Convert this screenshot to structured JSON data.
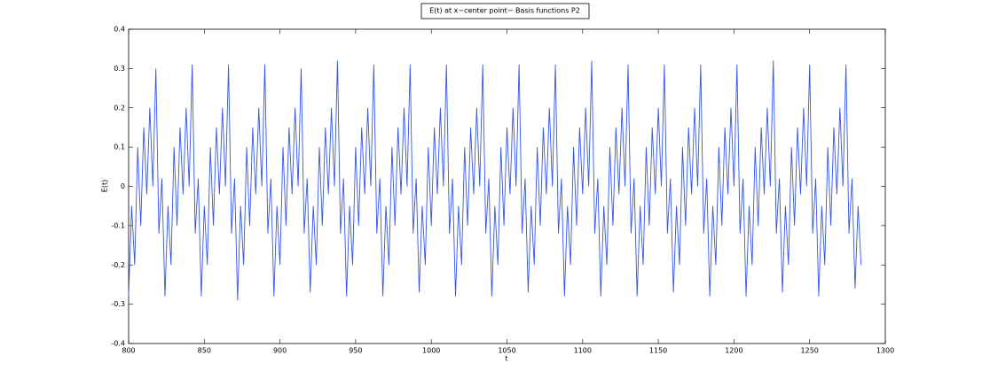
{
  "chart_data": {
    "type": "line",
    "title": "E(t) at x−center point− Basis functions P2",
    "x_label": "t",
    "y_label": "E(t)",
    "xlim": [
      800,
      1300
    ],
    "xticks": [
      800,
      850,
      900,
      950,
      1000,
      1050,
      1100,
      1150,
      1200,
      1250,
      1300
    ],
    "ylim": [
      -0.4,
      0.4
    ],
    "yticks": [
      -0.4,
      -0.3,
      -0.2,
      -0.1,
      0,
      0.1,
      0.2,
      0.3,
      0.4
    ],
    "grid": false,
    "series": [
      {
        "name": "E(t)",
        "color": "#3355ee",
        "x": [
          800,
          802,
          804,
          806,
          808,
          810,
          812,
          814,
          816,
          818,
          820,
          822,
          824,
          826,
          828,
          830,
          832,
          834,
          836,
          838,
          840,
          842,
          844,
          846,
          848,
          850,
          852,
          854,
          856,
          858,
          860,
          862,
          864,
          866,
          868,
          870,
          872,
          874,
          876,
          878,
          880,
          882,
          884,
          886,
          888,
          890,
          892,
          894,
          896,
          898,
          900,
          902,
          904,
          906,
          908,
          910,
          912,
          914,
          916,
          918,
          920,
          922,
          924,
          926,
          928,
          930,
          932,
          934,
          936,
          938,
          940,
          942,
          944,
          946,
          948,
          950,
          952,
          954,
          956,
          958,
          960,
          962,
          964,
          966,
          968,
          970,
          972,
          974,
          976,
          978,
          980,
          982,
          984,
          986,
          988,
          990,
          992,
          994,
          996,
          998,
          1000,
          1002,
          1004,
          1006,
          1008,
          1010,
          1012,
          1014,
          1016,
          1018,
          1020,
          1022,
          1024,
          1026,
          1028,
          1030,
          1032,
          1034,
          1036,
          1038,
          1040,
          1042,
          1044,
          1046,
          1048,
          1050,
          1052,
          1054,
          1056,
          1058,
          1060,
          1062,
          1064,
          1066,
          1068,
          1070,
          1072,
          1074,
          1076,
          1078,
          1080,
          1082,
          1084,
          1086,
          1088,
          1090,
          1092,
          1094,
          1096,
          1098,
          1100,
          1102,
          1104,
          1106,
          1108,
          1110,
          1112,
          1114,
          1116,
          1118,
          1120,
          1122,
          1124,
          1126,
          1128,
          1130,
          1132,
          1134,
          1136,
          1138,
          1140,
          1142,
          1144,
          1146,
          1148,
          1150,
          1152,
          1154,
          1156,
          1158,
          1160,
          1162,
          1164,
          1166,
          1168,
          1170,
          1172,
          1174,
          1176,
          1178,
          1180,
          1182,
          1184,
          1186,
          1188,
          1190,
          1192,
          1194,
          1196,
          1198,
          1200,
          1202,
          1204,
          1206,
          1208,
          1210,
          1212,
          1214,
          1216,
          1218,
          1220,
          1222,
          1224,
          1226,
          1228,
          1230,
          1232,
          1234,
          1236,
          1238,
          1240,
          1242,
          1244,
          1246,
          1248,
          1250,
          1252,
          1254,
          1256,
          1258,
          1260,
          1262,
          1264,
          1266,
          1268,
          1270,
          1272,
          1274,
          1276,
          1278,
          1280,
          1282,
          1284
        ],
        "values": [
          -0.28,
          -0.05,
          -0.2,
          0.1,
          -0.1,
          0.15,
          -0.02,
          0.2,
          0,
          0.3,
          -0.12,
          0.02,
          -0.28,
          -0.05,
          -0.2,
          0.1,
          -0.1,
          0.15,
          -0.02,
          0.2,
          0,
          0.31,
          -0.12,
          0.02,
          -0.28,
          -0.05,
          -0.2,
          0.1,
          -0.1,
          0.15,
          -0.02,
          0.2,
          0,
          0.31,
          -0.12,
          0.02,
          -0.29,
          -0.05,
          -0.2,
          0.1,
          -0.1,
          0.15,
          -0.02,
          0.2,
          0,
          0.31,
          -0.12,
          0.02,
          -0.28,
          -0.05,
          -0.2,
          0.1,
          -0.1,
          0.15,
          -0.02,
          0.2,
          0,
          0.3,
          -0.12,
          0.02,
          -0.27,
          -0.05,
          -0.2,
          0.1,
          -0.1,
          0.15,
          -0.02,
          0.2,
          0,
          0.32,
          -0.12,
          0.02,
          -0.28,
          -0.05,
          -0.2,
          0.1,
          -0.1,
          0.15,
          -0.02,
          0.2,
          0,
          0.31,
          -0.12,
          0.02,
          -0.28,
          -0.05,
          -0.2,
          0.1,
          -0.1,
          0.15,
          -0.02,
          0.2,
          0,
          0.31,
          -0.12,
          0.02,
          -0.27,
          -0.05,
          -0.2,
          0.1,
          -0.1,
          0.15,
          -0.02,
          0.2,
          0,
          0.31,
          -0.12,
          0.02,
          -0.28,
          -0.05,
          -0.2,
          0.1,
          -0.1,
          0.15,
          -0.02,
          0.2,
          0,
          0.31,
          -0.12,
          0.02,
          -0.28,
          -0.05,
          -0.2,
          0.1,
          -0.1,
          0.15,
          -0.02,
          0.2,
          0,
          0.31,
          -0.12,
          0.02,
          -0.27,
          -0.05,
          -0.2,
          0.1,
          -0.1,
          0.15,
          -0.02,
          0.2,
          0,
          0.31,
          -0.12,
          0.02,
          -0.28,
          -0.05,
          -0.2,
          0.1,
          -0.1,
          0.15,
          -0.02,
          0.2,
          0,
          0.32,
          -0.12,
          0.02,
          -0.28,
          -0.05,
          -0.2,
          0.1,
          -0.1,
          0.15,
          -0.02,
          0.2,
          0,
          0.31,
          -0.12,
          0.02,
          -0.28,
          -0.05,
          -0.2,
          0.1,
          -0.1,
          0.15,
          -0.02,
          0.2,
          0,
          0.31,
          -0.12,
          0.02,
          -0.27,
          -0.05,
          -0.2,
          0.1,
          -0.1,
          0.15,
          -0.02,
          0.2,
          0,
          0.31,
          -0.12,
          0.02,
          -0.28,
          -0.05,
          -0.2,
          0.1,
          -0.1,
          0.15,
          -0.02,
          0.2,
          0,
          0.31,
          -0.12,
          0.02,
          -0.28,
          -0.05,
          -0.2,
          0.1,
          -0.1,
          0.15,
          -0.02,
          0.2,
          0,
          0.32,
          -0.12,
          0.02,
          -0.27,
          -0.05,
          -0.2,
          0.1,
          -0.1,
          0.15,
          -0.02,
          0.2,
          0,
          0.31,
          -0.12,
          0.02,
          -0.28,
          -0.05,
          -0.2,
          0.1,
          -0.1,
          0.15,
          -0.02,
          0.2,
          0,
          0.31,
          -0.12,
          0.02,
          -0.26,
          -0.05,
          -0.2
        ]
      }
    ]
  }
}
